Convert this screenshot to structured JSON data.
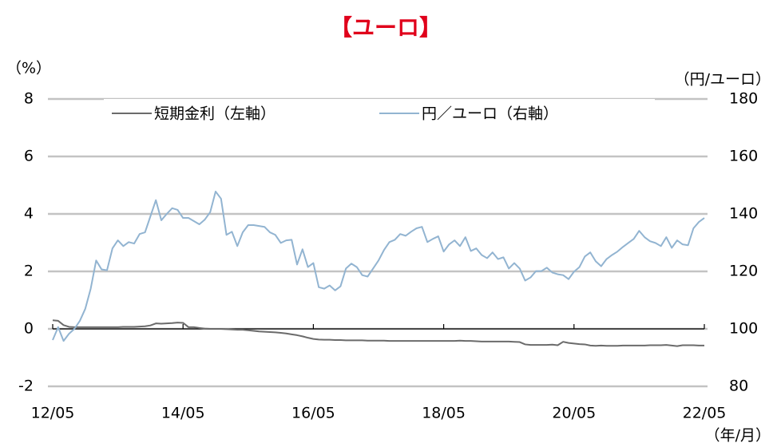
{
  "chart_data": {
    "type": "line",
    "title": "【ユーロ】",
    "y_label": "（%）",
    "y2_label": "（円/ユーロ）",
    "x_label": "（年/月）",
    "categories": [
      "12/05",
      null,
      null,
      null,
      null,
      null,
      null,
      null,
      null,
      null,
      null,
      null,
      null,
      null,
      null,
      null,
      null,
      null,
      null,
      null,
      null,
      null,
      null,
      null,
      "14/05",
      null,
      null,
      null,
      null,
      null,
      null,
      null,
      null,
      null,
      null,
      null,
      null,
      null,
      null,
      null,
      null,
      null,
      null,
      null,
      null,
      null,
      null,
      null,
      "16/05",
      null,
      null,
      null,
      null,
      null,
      null,
      null,
      null,
      null,
      null,
      null,
      null,
      null,
      null,
      null,
      null,
      null,
      null,
      null,
      null,
      null,
      null,
      null,
      "18/05",
      null,
      null,
      null,
      null,
      null,
      null,
      null,
      null,
      null,
      null,
      null,
      null,
      null,
      null,
      null,
      null,
      null,
      null,
      null,
      null,
      null,
      null,
      null,
      "20/05",
      null,
      null,
      null,
      null,
      null,
      null,
      null,
      null,
      null,
      null,
      null,
      null,
      null,
      null,
      null,
      null,
      null,
      null,
      null,
      null,
      null,
      null,
      null,
      "22/05"
    ],
    "series": [
      {
        "name": "短期金利（左軸）",
        "color": "#6b6b6b",
        "axis": "y",
        "values": [
          0.3,
          0.28,
          0.13,
          0.07,
          0.06,
          0.06,
          0.06,
          0.06,
          0.06,
          0.06,
          0.06,
          0.06,
          0.06,
          0.07,
          0.07,
          0.07,
          0.08,
          0.09,
          0.12,
          0.19,
          0.18,
          0.19,
          0.2,
          0.22,
          0.21,
          0.06,
          0.06,
          0.03,
          0.01,
          0.0,
          0.0,
          0.0,
          -0.01,
          -0.02,
          -0.03,
          -0.03,
          -0.05,
          -0.07,
          -0.09,
          -0.1,
          -0.11,
          -0.12,
          -0.14,
          -0.16,
          -0.19,
          -0.22,
          -0.26,
          -0.31,
          -0.35,
          -0.37,
          -0.38,
          -0.38,
          -0.39,
          -0.39,
          -0.4,
          -0.4,
          -0.4,
          -0.4,
          -0.41,
          -0.41,
          -0.41,
          -0.41,
          -0.42,
          -0.42,
          -0.42,
          -0.42,
          -0.42,
          -0.42,
          -0.42,
          -0.42,
          -0.42,
          -0.42,
          -0.42,
          -0.42,
          -0.42,
          -0.41,
          -0.42,
          -0.42,
          -0.43,
          -0.44,
          -0.44,
          -0.44,
          -0.44,
          -0.44,
          -0.44,
          -0.45,
          -0.46,
          -0.54,
          -0.56,
          -0.56,
          -0.56,
          -0.56,
          -0.55,
          -0.57,
          -0.45,
          -0.49,
          -0.51,
          -0.53,
          -0.54,
          -0.58,
          -0.59,
          -0.58,
          -0.59,
          -0.59,
          -0.59,
          -0.58,
          -0.58,
          -0.58,
          -0.58,
          -0.58,
          -0.57,
          -0.57,
          -0.57,
          -0.56,
          -0.58,
          -0.6,
          -0.57,
          -0.57,
          -0.57,
          -0.58,
          -0.58
        ]
      },
      {
        "name": "円／ユーロ（右軸）",
        "color": "#92b4d1",
        "axis": "y2",
        "values": [
          96.1,
          100.6,
          95.8,
          98.3,
          100,
          102.8,
          107,
          114,
          123.8,
          120.7,
          120.4,
          128,
          130.8,
          128.8,
          130.2,
          129.7,
          133,
          133.6,
          139.2,
          144.8,
          137.8,
          140,
          142,
          141.4,
          138.6,
          138.6,
          137.5,
          136.4,
          138,
          140.6,
          147.8,
          145.3,
          132.7,
          133.8,
          128.8,
          133.6,
          136.1,
          136.1,
          135.8,
          135.5,
          133.6,
          132.7,
          129.9,
          130.8,
          131,
          122.4,
          127.7,
          121.5,
          122.9,
          114.5,
          114,
          115.1,
          113.4,
          114.8,
          121,
          122.7,
          121.5,
          118.7,
          118.2,
          121,
          123.8,
          127.4,
          130.2,
          131,
          133,
          132.4,
          133.8,
          135,
          135.5,
          130.2,
          131.3,
          132.2,
          126.9,
          129.4,
          130.8,
          128.8,
          131.9,
          127.1,
          128,
          125.7,
          124.6,
          126.6,
          124.3,
          124.9,
          121,
          122.9,
          121,
          116.8,
          117.9,
          120.1,
          120.1,
          121.3,
          119.6,
          119,
          118.7,
          117.3,
          119.9,
          121.5,
          125.2,
          126.6,
          123.5,
          121.8,
          124.3,
          125.7,
          126.9,
          128.5,
          129.9,
          131.3,
          134.1,
          131.9,
          130.5,
          129.9,
          128.8,
          131.9,
          128.2,
          130.8,
          129.4,
          129.1,
          135,
          137.2,
          138.6
        ]
      }
    ],
    "ylim": [
      -2,
      8
    ],
    "yticks": [
      -2,
      0,
      2,
      4,
      6,
      8
    ],
    "y2lim": [
      80,
      180
    ],
    "y2ticks": [
      80,
      100,
      120,
      140,
      160,
      180
    ],
    "grid": true
  }
}
